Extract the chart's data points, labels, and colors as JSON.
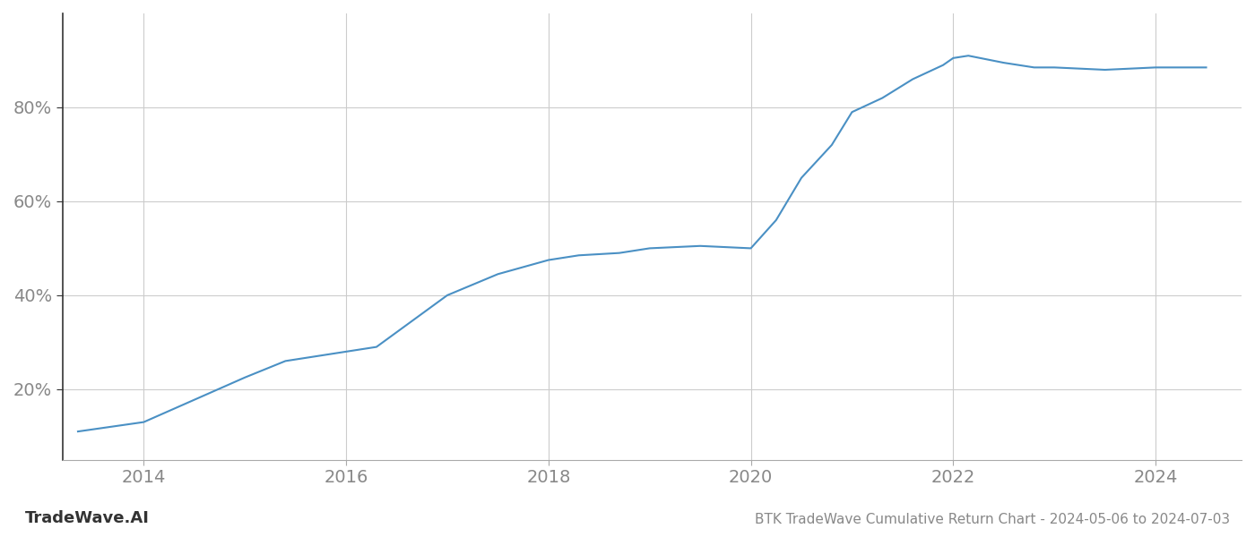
{
  "x_years": [
    2013.35,
    2014.0,
    2015.0,
    2015.4,
    2016.0,
    2016.3,
    2017.0,
    2017.5,
    2018.0,
    2018.3,
    2018.7,
    2019.0,
    2019.5,
    2020.0,
    2020.25,
    2020.5,
    2020.8,
    2021.0,
    2021.3,
    2021.6,
    2021.9,
    2022.0,
    2022.15,
    2022.5,
    2022.8,
    2023.0,
    2023.5,
    2024.0,
    2024.5
  ],
  "y_values": [
    11.0,
    13.0,
    22.5,
    26.0,
    28.0,
    29.0,
    40.0,
    44.5,
    47.5,
    48.5,
    49.0,
    50.0,
    50.5,
    50.0,
    56.0,
    65.0,
    72.0,
    79.0,
    82.0,
    86.0,
    89.0,
    90.5,
    91.0,
    89.5,
    88.5,
    88.5,
    88.0,
    88.5,
    88.5
  ],
  "line_color": "#4a90c4",
  "line_width": 1.5,
  "background_color": "#ffffff",
  "grid_color": "#cccccc",
  "title": "BTK TradeWave Cumulative Return Chart - 2024-05-06 to 2024-07-03",
  "watermark": "TradeWave.AI",
  "x_ticks": [
    2014,
    2016,
    2018,
    2020,
    2022,
    2024
  ],
  "y_ticks": [
    20,
    40,
    60,
    80
  ],
  "xlim": [
    2013.2,
    2024.85
  ],
  "ylim": [
    5,
    100
  ],
  "tick_color": "#888888",
  "title_color": "#888888",
  "watermark_color": "#333333",
  "title_fontsize": 11,
  "tick_fontsize": 14,
  "watermark_fontsize": 13,
  "left_spine_color": "#333333"
}
